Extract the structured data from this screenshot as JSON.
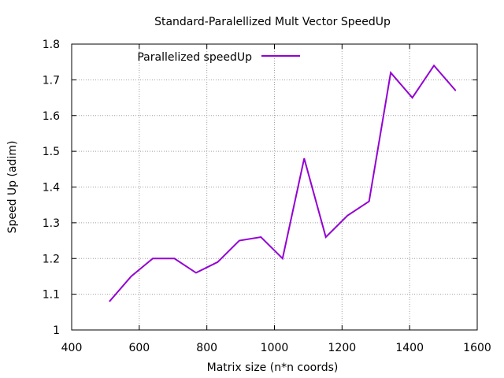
{
  "chart_data": {
    "type": "line",
    "title": "Standard-Paralellized Mult Vector SpeedUp",
    "xlabel": "Matrix size (n*n coords)",
    "ylabel": "Speed Up (adim)",
    "xlim": [
      400,
      1600
    ],
    "ylim": [
      1,
      1.8
    ],
    "xticks": [
      "400",
      "600",
      "800",
      "1000",
      "1200",
      "1400",
      "1600"
    ],
    "yticks": [
      "1",
      "1.1",
      "1.2",
      "1.3",
      "1.4",
      "1.5",
      "1.6",
      "1.7",
      "1.8"
    ],
    "grid": true,
    "legend_position": "top-left",
    "series": [
      {
        "name": "Parallelized speedUp",
        "color": "#9400d3",
        "x": [
          512,
          576,
          640,
          704,
          768,
          832,
          896,
          960,
          1024,
          1088,
          1152,
          1216,
          1280,
          1344,
          1408,
          1472,
          1536
        ],
        "y": [
          1.08,
          1.15,
          1.2,
          1.2,
          1.16,
          1.19,
          1.25,
          1.26,
          1.2,
          1.48,
          1.26,
          1.32,
          1.36,
          1.72,
          1.65,
          1.74,
          1.67
        ]
      }
    ]
  }
}
